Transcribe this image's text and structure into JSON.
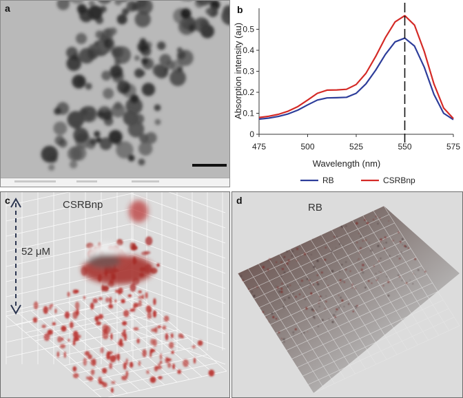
{
  "panels": {
    "a": {
      "letter": "a"
    },
    "b": {
      "letter": "b"
    },
    "c": {
      "letter": "c",
      "title": "CSRBnp",
      "depth_label": "52 μM"
    },
    "d": {
      "letter": "d",
      "title": "RB"
    }
  },
  "colors": {
    "rb": "#2d3d9a",
    "csrbnp": "#d42a26",
    "red_stain": "#b8302c"
  },
  "chart_data": {
    "type": "line",
    "title": "",
    "xlabel": "Wavelength (nm)",
    "ylabel": "Absorption intensity (au)",
    "xlim": [
      475,
      575
    ],
    "ylim": [
      0,
      0.6
    ],
    "xticks": [
      475,
      500,
      525,
      550,
      575
    ],
    "yticks": [
      0,
      0.1,
      0.2,
      0.3,
      0.4,
      0.5
    ],
    "ytick_labels": [
      "0",
      "0.1",
      "0.2",
      "0.3",
      "0.4",
      "0.5"
    ],
    "x": [
      475,
      480,
      485,
      490,
      495,
      500,
      505,
      510,
      515,
      520,
      525,
      530,
      535,
      540,
      545,
      550,
      555,
      560,
      565,
      570,
      575
    ],
    "series": [
      {
        "name": "RB",
        "values": [
          0.072,
          0.077,
          0.085,
          0.097,
          0.115,
          0.14,
          0.163,
          0.173,
          0.174,
          0.176,
          0.195,
          0.24,
          0.305,
          0.38,
          0.44,
          0.458,
          0.42,
          0.32,
          0.19,
          0.1,
          0.07
        ]
      },
      {
        "name": "CSRBnp",
        "values": [
          0.08,
          0.086,
          0.095,
          0.11,
          0.132,
          0.163,
          0.195,
          0.21,
          0.211,
          0.214,
          0.237,
          0.29,
          0.37,
          0.46,
          0.535,
          0.565,
          0.52,
          0.395,
          0.24,
          0.125,
          0.075
        ]
      }
    ],
    "reference_line": {
      "x": 550,
      "style": "dashed"
    },
    "legend_position": "bottom"
  }
}
